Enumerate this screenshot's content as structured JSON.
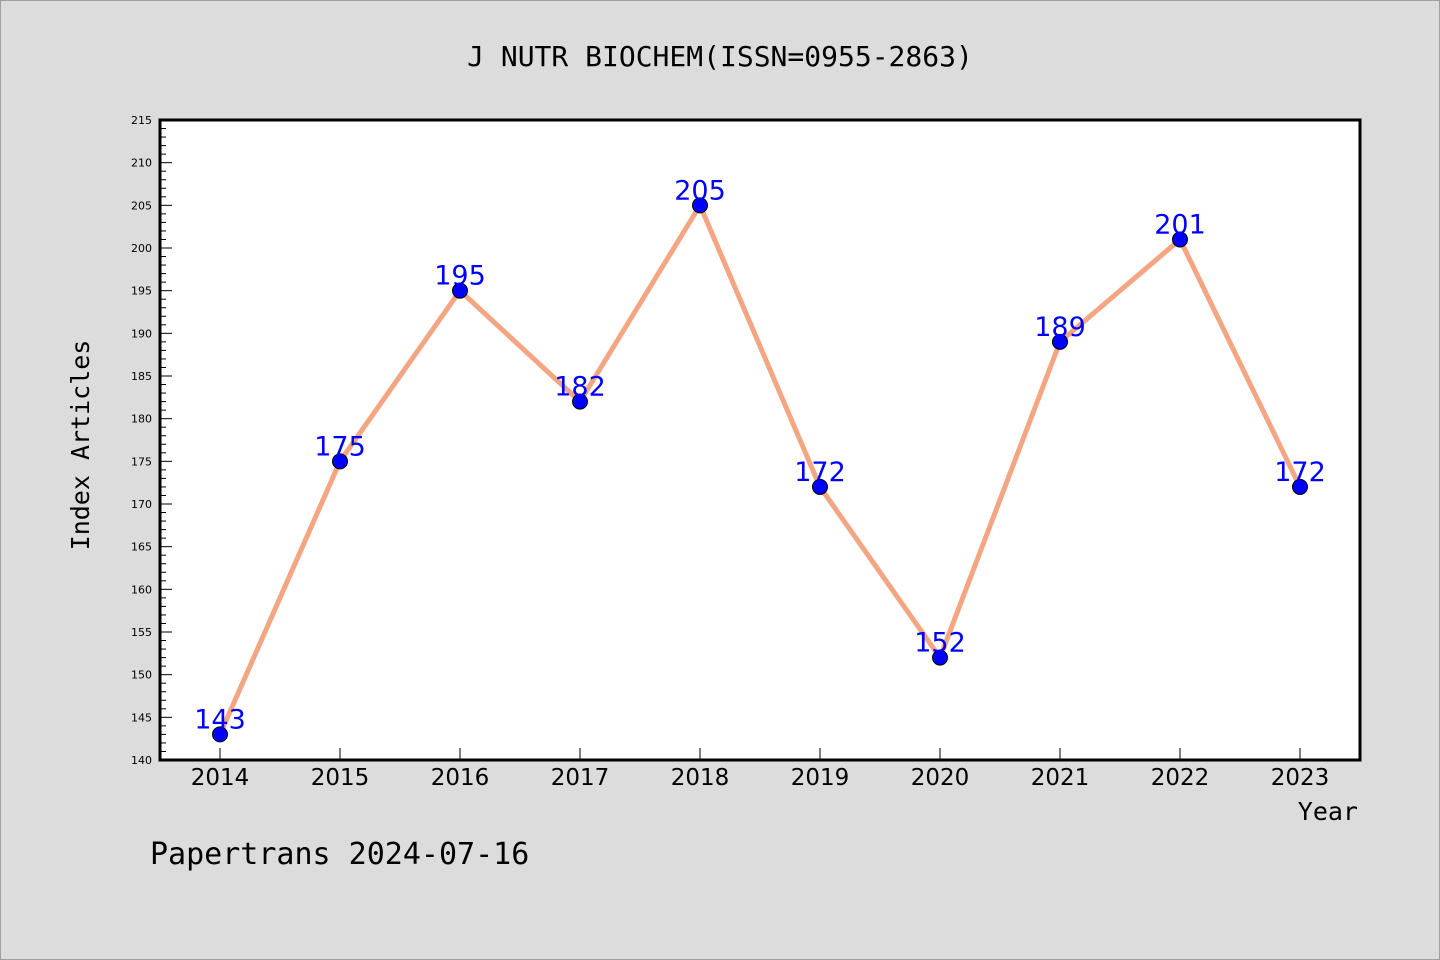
{
  "chart_data": {
    "type": "line",
    "title": "J NUTR BIOCHEM(ISSN=0955-2863)",
    "xlabel": "Year",
    "ylabel": "Index Articles",
    "categories": [
      "2014",
      "2015",
      "2016",
      "2017",
      "2018",
      "2019",
      "2020",
      "2021",
      "2022",
      "2023"
    ],
    "series": [
      {
        "values": [
          143,
          175,
          195,
          182,
          205,
          172,
          152,
          189,
          201,
          172
        ]
      }
    ],
    "data_labels": [
      "143",
      "175",
      "195",
      "182",
      "205",
      "172",
      "152",
      "189",
      "201",
      "172"
    ],
    "ylim": [
      140,
      215
    ],
    "y_ticks": [
      "140",
      "145",
      "150",
      "155",
      "160",
      "165",
      "170",
      "175",
      "180",
      "185",
      "190",
      "195",
      "200",
      "205",
      "210",
      "215"
    ],
    "grid": false,
    "legend": "none",
    "colors": {
      "line": "#f4a582",
      "marker": "#0000ff",
      "label": "#0000ff",
      "plot_background": "#ffffff",
      "page_background": "#dcdcdc"
    }
  },
  "footer": {
    "watermark": "Papertrans 2024-07-16"
  }
}
